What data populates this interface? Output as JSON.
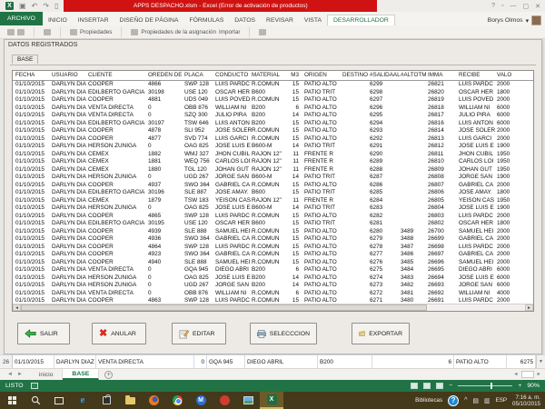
{
  "titlebar": {
    "title": "APPS DESPACHO.xlsm -  Excel (Error de activación de productos)",
    "user": "Borys Olmos",
    "window_controls": {
      "help": "?",
      "ribbon": "▫",
      "minimize": "—",
      "maximize": "▢",
      "close": "✕"
    }
  },
  "ribbon": {
    "tabs": [
      "ARCHIVO",
      "INICIO",
      "INSERTAR",
      "DISEÑO DE PÁGINA",
      "FÓRMULAS",
      "DATOS",
      "REVISAR",
      "VISTA",
      "DESARROLLADOR"
    ],
    "active_tab": "DESARROLLADOR",
    "strip_labels": {
      "propiedades": "Propiedades",
      "prop_asignacion": "Propiedades de la asignación",
      "importar": "Importar"
    }
  },
  "form": {
    "title": "DATOS REGISTRADOS",
    "page_tab": "BASE",
    "buttons": {
      "salir": "SALIR",
      "anular": "ANULAR",
      "editar": "EDITAR",
      "seleccion": "SELECCCION",
      "exportar": "EXPORTAR"
    },
    "table": {
      "headers": [
        "FECHA",
        "USUARIO",
        "CLIENTE",
        "OREDEN DE",
        "PLACA",
        "CONDUCTO",
        "MATERIAL",
        "M3",
        "ORIGEN",
        "DESTINO",
        "#SALIDAAL",
        "#ALTOTM",
        "IMMA",
        "RECIBE",
        "VALO"
      ],
      "rows": [
        [
          "01/10/2015",
          "DARLYN DIA",
          "COOPER",
          "4866",
          "SWP 128",
          "LUIS PARDC",
          "R.COMUN",
          "15",
          "PATIO ALTO",
          "",
          "6299",
          "",
          "26821",
          "LUIS PARDC",
          "2000"
        ],
        [
          "01/10/2015",
          "DARLYN DIA",
          "EDILBERTO GARCIA",
          "30198",
          "USE 120",
          "OSCAR HER",
          "B600",
          "15",
          "PATIO TRIT",
          "",
          "6298",
          "",
          "26820",
          "OSCAR HER",
          "1800"
        ],
        [
          "01/10/2015",
          "DARLYN DIA",
          "COOPER",
          "4881",
          "UDS 049",
          "LUIS POVED",
          "R.COMUN",
          "15",
          "PATIO ALTO",
          "",
          "6297",
          "",
          "26819",
          "LUIS POVED",
          "2000"
        ],
        [
          "01/10/2015",
          "DARLYN DIA",
          "VENTA DIRECTA",
          "0",
          "OBB 876",
          "WILLIAM NI",
          "B200",
          "6",
          "PATIO ALTO",
          "",
          "6296",
          "",
          "26818",
          "WILLIAM NI",
          "6000"
        ],
        [
          "01/10/2015",
          "DARLYN DIA",
          "VENTA DIRECTA",
          "0",
          "SZQ 300",
          "JULIO PIRA",
          "B200",
          "14",
          "PATIO ALTO",
          "",
          "6295",
          "",
          "26817",
          "JULIO PIRA",
          "6000"
        ],
        [
          "01/10/2015",
          "DARLYN DIA",
          "EDILBERTO GARCIA",
          "30197",
          "TSW 646",
          "LUIS ANTON",
          "B200",
          "15",
          "PATIO ALTO",
          "",
          "6294",
          "",
          "26816",
          "LUIS ANTON",
          "6000"
        ],
        [
          "01/10/2015",
          "DARLYN DIA",
          "COOPER",
          "4878",
          "SLI 952",
          "JOSE SOLER",
          "R.COMUN",
          "15",
          "PATIO ALTO",
          "",
          "6293",
          "",
          "26814",
          "JOSE SOLER",
          "2000"
        ],
        [
          "01/10/2015",
          "DARLYN DIA",
          "COOPER",
          "4877",
          "SVD 774",
          "LUIS GARCI",
          "R.COMUN",
          "15",
          "PATIO ALTO",
          "",
          "6292",
          "",
          "26813",
          "LUIS GARCI",
          "2000"
        ],
        [
          "01/10/2015",
          "DARLYN DIA",
          "HERSON ZUÑIGA",
          "0",
          "OAG 825",
          "JOSE LUIS E",
          "B600-M",
          "14",
          "PATIO TRIT",
          "",
          "6291",
          "",
          "26812",
          "JOSE LUIS E",
          "1900"
        ],
        [
          "01/10/2015",
          "DARLYN DIA",
          "CEMEX",
          "1882",
          "WMJ 327",
          "JHON CUBIL",
          "RAJON 12\"",
          "11",
          "FRENTE R",
          "",
          "6290",
          "",
          "26811",
          "JHON CUBIL",
          "1950"
        ],
        [
          "01/10/2015",
          "DARLYN DIA",
          "CEMEX",
          "1881",
          "WEQ 756",
          "CARLOS LOI",
          "RAJON 12\"",
          "11",
          "FRENTE R",
          "",
          "6289",
          "",
          "26810",
          "CARLOS LOI",
          "1950"
        ],
        [
          "01/10/2015",
          "DARLYN DIA",
          "CEMEX",
          "1880",
          "TGL 120",
          "JOHAN GUT",
          "RAJON 12\"",
          "11",
          "FRENTE R",
          "",
          "6288",
          "",
          "26809",
          "JOHAN GUT",
          "1950"
        ],
        [
          "01/10/2015",
          "DARLYN DIA",
          "HERSON ZUÑIGA",
          "0",
          "UGD 267",
          "JORGE SAN",
          "B600-M",
          "14",
          "PATIO TRIT",
          "",
          "6287",
          "",
          "26808",
          "JORGE SAN",
          "1900"
        ],
        [
          "01/10/2015",
          "DARLYN DIA",
          "COOPER",
          "4937",
          "SWO 364",
          "GABRIEL CA",
          "R.COMUN",
          "15",
          "PATIO ALTO",
          "",
          "6286",
          "",
          "26807",
          "GABRIEL CA",
          "2000"
        ],
        [
          "01/10/2015",
          "DARLYN DIA",
          "EDILBERTO GARCIA",
          "30196",
          "SLE 887",
          "JOSE AMAY.",
          "B600",
          "15",
          "PATIO TRIT",
          "",
          "6285",
          "",
          "26806",
          "JOSE AMAY.",
          "1800"
        ],
        [
          "01/10/2015",
          "DARLYN DIA",
          "CEMEX",
          "1879",
          "TSW 183",
          "YEISON CAS",
          "RAJON 12\"",
          "11",
          "FRENTE R",
          "",
          "6284",
          "",
          "26805",
          "YEISON CAS",
          "1950"
        ],
        [
          "01/10/2015",
          "DARLYN DIA",
          "HERSON ZUÑIGA",
          "0",
          "OAG 825",
          "JOSE LUIS E",
          "B600-M",
          "14",
          "PATIO TRIT",
          "",
          "6283",
          "",
          "26804",
          "JOSE LUIS E",
          "1900"
        ],
        [
          "01/10/2015",
          "DARLYN DIA",
          "COOPER",
          "4865",
          "SWP 128",
          "LUIS PARDC",
          "R.COMUN",
          "15",
          "PATIO ALTO",
          "",
          "6282",
          "",
          "26803",
          "LUIS PARDC",
          "2000"
        ],
        [
          "01/10/2015",
          "DARLYN DIA",
          "EDILBERTO GARCIA",
          "30195",
          "USE 120",
          "OSCAR HER",
          "B600",
          "15",
          "PATIO TRIT",
          "",
          "6281",
          "",
          "26802",
          "OSCAR HER",
          "1800"
        ],
        [
          "01/10/2015",
          "DARLYN DIA",
          "COOPER",
          "4939",
          "SLE 888",
          "SAMUEL HEI",
          "R.COMUN",
          "15",
          "PATIO ALTO",
          "",
          "6280",
          "3489",
          "26700",
          "SAMUEL HEI",
          "2000"
        ],
        [
          "01/10/2015",
          "DARLYN DIA",
          "COOPER",
          "4936",
          "SWO 364",
          "GABRIEL CA",
          "R.COMUN",
          "15",
          "PATIO ALTO",
          "",
          "6279",
          "3488",
          "26699",
          "GABRIEL CA",
          "2000"
        ],
        [
          "01/10/2015",
          "DARLYN DIA",
          "COOPER",
          "4864",
          "SWP 128",
          "LUIS PARDC",
          "R.COMUN",
          "15",
          "PATIO ALTO",
          "",
          "6278",
          "3487",
          "26698",
          "LUIS PARDC",
          "2000"
        ],
        [
          "01/10/2015",
          "DARLYN DIA",
          "COOPER",
          "4923",
          "SWO 364",
          "GABRIEL CA",
          "R.COMUN",
          "15",
          "PATIO ALTO",
          "",
          "6277",
          "3486",
          "26697",
          "GABRIEL CA",
          "2000"
        ],
        [
          "01/10/2015",
          "DARLYN DIA",
          "COOPER",
          "4940",
          "SLE 888",
          "SAMUEL HEI",
          "R.COMUN",
          "15",
          "PATIO ALTO",
          "",
          "6276",
          "3485",
          "26696",
          "SAMUEL HEI",
          "2000"
        ],
        [
          "01/10/2015",
          "DARLYN DIA",
          "VENTA DIRECTA",
          "0",
          "GQA 945",
          "DIEGO ABRI",
          "B200",
          "6",
          "PATIO ALTO",
          "",
          "6275",
          "3484",
          "26695",
          "DIEGO ABRI",
          "6000"
        ],
        [
          "01/10/2015",
          "DARLYN DIA",
          "HERSON ZUÑIGA",
          "0",
          "OAG 825",
          "JOSE LUIS E",
          "B200",
          "14",
          "PATIO ALTO",
          "",
          "6274",
          "3483",
          "26694",
          "JOSE LUIS E",
          "6000"
        ],
        [
          "01/10/2015",
          "DARLYN DIA",
          "HERSON ZUÑIGA",
          "0",
          "UGD 267",
          "JORGE SAN",
          "B200",
          "14",
          "PATIO ALTO",
          "",
          "6273",
          "3482",
          "26693",
          "JORGE SAN",
          "6000"
        ],
        [
          "01/10/2015",
          "DARLYN DIA",
          "VENTA DIRECTA",
          "0",
          "OBB 876",
          "WILLIAM NI",
          "R.COMUN",
          "6",
          "PATIO ALTO",
          "",
          "6272",
          "3481",
          "26692",
          "WILLIAM NI",
          "4000"
        ],
        [
          "01/10/2015",
          "DARLYN DIA",
          "COOPER",
          "4863",
          "SWP 128",
          "LUIS PARDC",
          "R.COMUN",
          "15",
          "PATIO ALTO",
          "",
          "6271",
          "3480",
          "26691",
          "LUIS PARDC",
          "2000"
        ]
      ]
    }
  },
  "sheet": {
    "visible_row": {
      "num": "26",
      "cells": [
        "01/10/2015",
        "DARLYN DIAZ",
        "VENTA DIRECTA",
        "0",
        "GQA 945",
        "DIEGO ABRIL",
        "B200",
        "6",
        "PATIO ALTO",
        "6275"
      ]
    },
    "tabs": {
      "inicio": "inicio",
      "base": "BASE"
    },
    "active_tab": "BASE",
    "add_tab": "+"
  },
  "statusbar": {
    "mode": "LISTO",
    "zoom": "90%"
  },
  "taskbar": {
    "tray": {
      "label": "Bibliotecas",
      "help": "?",
      "chevron": "^",
      "lang": "ESP",
      "time": "7:16 a. m.",
      "date": "05/10/2015"
    }
  },
  "icons": {
    "undo": "↶",
    "redo": "↷",
    "new_doc": "▯",
    "nav_left": "◄",
    "nav_right": "►",
    "scroll_left": "◄",
    "scroll_right": "►",
    "scroll_down": "▼",
    "dropdown": "▾",
    "edge_letter": "e",
    "thunderbird_letter": "M",
    "excel_letter": "X"
  }
}
